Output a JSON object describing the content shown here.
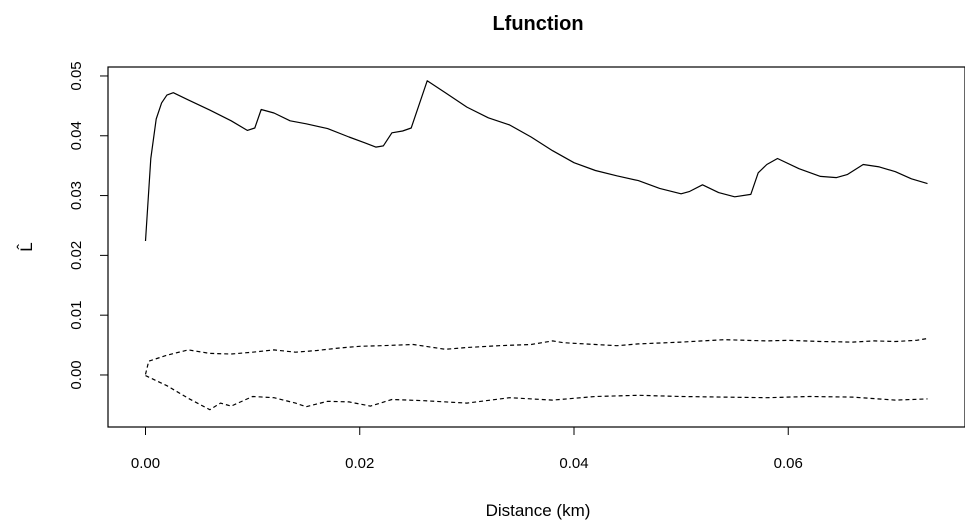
{
  "chart_data": {
    "type": "line",
    "title": "Lfunction",
    "xlabel": "Distance (km)",
    "ylabel": "L̂",
    "xlim": [
      -0.0035,
      0.0765
    ],
    "ylim": [
      -0.0087,
      0.0515
    ],
    "x_ticks": [
      0.0,
      0.02,
      0.04,
      0.06
    ],
    "x_tick_labels": [
      "0.00",
      "0.02",
      "0.04",
      "0.06"
    ],
    "y_ticks": [
      0.0,
      0.01,
      0.02,
      0.03,
      0.04,
      0.05
    ],
    "y_tick_labels": [
      "0.00",
      "0.01",
      "0.02",
      "0.03",
      "0.04",
      "0.05"
    ],
    "grid": false,
    "series": [
      {
        "style": "solid",
        "x": [
          0.0,
          0.0005,
          0.001,
          0.0015,
          0.002,
          0.0026,
          0.004,
          0.006,
          0.008,
          0.0095,
          0.0102,
          0.0108,
          0.012,
          0.0135,
          0.015,
          0.017,
          0.019,
          0.0205,
          0.0215,
          0.0222,
          0.023,
          0.024,
          0.0248,
          0.0263,
          0.028,
          0.03,
          0.032,
          0.034,
          0.036,
          0.038,
          0.04,
          0.042,
          0.044,
          0.046,
          0.048,
          0.05,
          0.0508,
          0.052,
          0.0535,
          0.055,
          0.0565,
          0.0572,
          0.058,
          0.059,
          0.061,
          0.063,
          0.0645,
          0.0655,
          0.067,
          0.0685,
          0.07,
          0.0715,
          0.073
        ],
        "y": [
          0.0224,
          0.0362,
          0.0428,
          0.0455,
          0.0468,
          0.0472,
          0.046,
          0.0443,
          0.0425,
          0.0409,
          0.0413,
          0.0444,
          0.0438,
          0.0425,
          0.042,
          0.0412,
          0.0398,
          0.0388,
          0.0381,
          0.0383,
          0.0405,
          0.0408,
          0.0413,
          0.0492,
          0.0472,
          0.0448,
          0.043,
          0.0418,
          0.0398,
          0.0375,
          0.0355,
          0.0342,
          0.0333,
          0.0325,
          0.0312,
          0.0303,
          0.0307,
          0.0318,
          0.0305,
          0.0298,
          0.0302,
          0.0338,
          0.0352,
          0.0362,
          0.0345,
          0.0332,
          0.033,
          0.0335,
          0.0352,
          0.0348,
          0.034,
          0.0328,
          0.032
        ]
      },
      {
        "style": "dashed",
        "x": [
          0.0,
          0.0003,
          0.002,
          0.004,
          0.006,
          0.008,
          0.01,
          0.012,
          0.014,
          0.016,
          0.018,
          0.02,
          0.022,
          0.025,
          0.028,
          0.03,
          0.033,
          0.036,
          0.038,
          0.039,
          0.041,
          0.044,
          0.046,
          0.05,
          0.054,
          0.056,
          0.058,
          0.06,
          0.063,
          0.066,
          0.068,
          0.07,
          0.072,
          0.073
        ],
        "y": [
          0.0001,
          0.0023,
          0.0033,
          0.0042,
          0.0036,
          0.0035,
          0.0038,
          0.0042,
          0.0038,
          0.0041,
          0.0045,
          0.0048,
          0.0049,
          0.0051,
          0.0043,
          0.0046,
          0.0049,
          0.0051,
          0.0057,
          0.0054,
          0.0052,
          0.0049,
          0.0052,
          0.0055,
          0.0059,
          0.0058,
          0.0057,
          0.0058,
          0.0056,
          0.0055,
          0.0057,
          0.0056,
          0.0058,
          0.0061
        ]
      },
      {
        "style": "dashed",
        "x": [
          0.0,
          0.002,
          0.004,
          0.006,
          0.007,
          0.008,
          0.01,
          0.012,
          0.014,
          0.015,
          0.017,
          0.019,
          0.021,
          0.023,
          0.026,
          0.03,
          0.034,
          0.038,
          0.042,
          0.046,
          0.05,
          0.054,
          0.058,
          0.062,
          0.066,
          0.07,
          0.073
        ],
        "y": [
          -0.0001,
          -0.0018,
          -0.0039,
          -0.0058,
          -0.0047,
          -0.0052,
          -0.0036,
          -0.0038,
          -0.0047,
          -0.0053,
          -0.0044,
          -0.0045,
          -0.0052,
          -0.0041,
          -0.0043,
          -0.0047,
          -0.0038,
          -0.0042,
          -0.0036,
          -0.0034,
          -0.0036,
          -0.0037,
          -0.0038,
          -0.0036,
          -0.0037,
          -0.0042,
          -0.004
        ]
      }
    ]
  }
}
